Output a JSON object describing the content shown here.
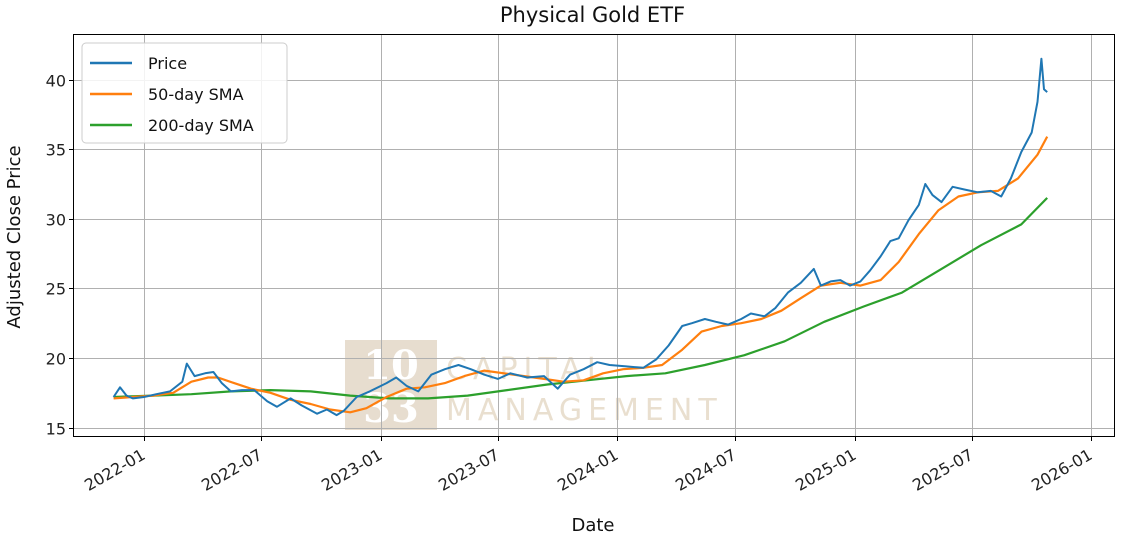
{
  "chart_data": {
    "type": "line",
    "title": "Physical Gold ETF",
    "xlabel": "Date",
    "ylabel": "Adjusted Close Price",
    "xlim": [
      "2021-09-15",
      "2026-02-05"
    ],
    "ylim": [
      14.4,
      43.2
    ],
    "x_ticks": [
      "2022-01",
      "2022-07",
      "2023-01",
      "2023-07",
      "2024-01",
      "2024-07",
      "2025-01",
      "2025-07",
      "2026-01"
    ],
    "y_ticks": [
      15,
      20,
      25,
      30,
      35,
      40
    ],
    "grid": true,
    "legend_position": "top-left",
    "watermark": {
      "top": "10",
      "bottom": "33",
      "text_lines": [
        "CAPITAL",
        "MANAGEMENT"
      ]
    },
    "series": [
      {
        "name": "Price",
        "color": "#1f77b4",
        "points": [
          [
            "2021-11-15",
            17.2
          ],
          [
            "2021-11-25",
            17.9
          ],
          [
            "2021-12-05",
            17.3
          ],
          [
            "2021-12-15",
            17.1
          ],
          [
            "2022-01-01",
            17.2
          ],
          [
            "2022-01-20",
            17.4
          ],
          [
            "2022-02-10",
            17.6
          ],
          [
            "2022-03-01",
            18.3
          ],
          [
            "2022-03-08",
            19.6
          ],
          [
            "2022-03-20",
            18.7
          ],
          [
            "2022-04-05",
            18.9
          ],
          [
            "2022-04-18",
            19.0
          ],
          [
            "2022-05-01",
            18.2
          ],
          [
            "2022-05-15",
            17.6
          ],
          [
            "2022-06-01",
            17.7
          ],
          [
            "2022-06-20",
            17.7
          ],
          [
            "2022-07-10",
            16.9
          ],
          [
            "2022-07-25",
            16.5
          ],
          [
            "2022-08-15",
            17.1
          ],
          [
            "2022-09-01",
            16.6
          ],
          [
            "2022-09-25",
            16.0
          ],
          [
            "2022-10-10",
            16.3
          ],
          [
            "2022-10-25",
            15.9
          ],
          [
            "2022-11-05",
            16.2
          ],
          [
            "2022-11-25",
            17.2
          ],
          [
            "2022-12-15",
            17.6
          ],
          [
            "2023-01-10",
            18.2
          ],
          [
            "2023-01-25",
            18.6
          ],
          [
            "2023-02-10",
            18.0
          ],
          [
            "2023-02-28",
            17.6
          ],
          [
            "2023-03-20",
            18.8
          ],
          [
            "2023-04-10",
            19.2
          ],
          [
            "2023-05-01",
            19.5
          ],
          [
            "2023-05-20",
            19.2
          ],
          [
            "2023-06-10",
            18.8
          ],
          [
            "2023-07-01",
            18.5
          ],
          [
            "2023-07-20",
            18.9
          ],
          [
            "2023-08-15",
            18.6
          ],
          [
            "2023-09-10",
            18.7
          ],
          [
            "2023-10-01",
            17.8
          ],
          [
            "2023-10-20",
            18.8
          ],
          [
            "2023-11-10",
            19.2
          ],
          [
            "2023-12-01",
            19.7
          ],
          [
            "2023-12-20",
            19.5
          ],
          [
            "2024-01-15",
            19.4
          ],
          [
            "2024-02-10",
            19.3
          ],
          [
            "2024-03-01",
            19.9
          ],
          [
            "2024-03-20",
            20.9
          ],
          [
            "2024-04-10",
            22.3
          ],
          [
            "2024-04-25",
            22.5
          ],
          [
            "2024-05-15",
            22.8
          ],
          [
            "2024-06-01",
            22.6
          ],
          [
            "2024-06-20",
            22.4
          ],
          [
            "2024-07-10",
            22.8
          ],
          [
            "2024-07-25",
            23.2
          ],
          [
            "2024-08-15",
            23.0
          ],
          [
            "2024-09-01",
            23.6
          ],
          [
            "2024-09-20",
            24.7
          ],
          [
            "2024-10-10",
            25.4
          ],
          [
            "2024-10-30",
            26.4
          ],
          [
            "2024-11-10",
            25.2
          ],
          [
            "2024-11-25",
            25.5
          ],
          [
            "2024-12-10",
            25.6
          ],
          [
            "2024-12-25",
            25.2
          ],
          [
            "2025-01-10",
            25.5
          ],
          [
            "2025-01-25",
            26.3
          ],
          [
            "2025-02-10",
            27.3
          ],
          [
            "2025-02-25",
            28.4
          ],
          [
            "2025-03-10",
            28.6
          ],
          [
            "2025-03-25",
            29.9
          ],
          [
            "2025-04-10",
            31.0
          ],
          [
            "2025-04-20",
            32.5
          ],
          [
            "2025-05-01",
            31.7
          ],
          [
            "2025-05-15",
            31.2
          ],
          [
            "2025-06-01",
            32.3
          ],
          [
            "2025-06-20",
            32.1
          ],
          [
            "2025-07-10",
            31.9
          ],
          [
            "2025-07-30",
            32.0
          ],
          [
            "2025-08-15",
            31.6
          ],
          [
            "2025-08-30",
            32.9
          ],
          [
            "2025-09-15",
            34.8
          ],
          [
            "2025-10-01",
            36.2
          ],
          [
            "2025-10-10",
            38.4
          ],
          [
            "2025-10-16",
            41.5
          ],
          [
            "2025-10-20",
            39.3
          ],
          [
            "2025-10-25",
            39.1
          ]
        ]
      },
      {
        "name": "50-day SMA",
        "color": "#ff7f0e",
        "points": [
          [
            "2021-11-15",
            17.1
          ],
          [
            "2021-12-15",
            17.2
          ],
          [
            "2022-01-15",
            17.3
          ],
          [
            "2022-02-15",
            17.5
          ],
          [
            "2022-03-15",
            18.3
          ],
          [
            "2022-04-10",
            18.6
          ],
          [
            "2022-04-25",
            18.6
          ],
          [
            "2022-05-20",
            18.2
          ],
          [
            "2022-06-15",
            17.8
          ],
          [
            "2022-07-15",
            17.5
          ],
          [
            "2022-08-15",
            17.0
          ],
          [
            "2022-09-15",
            16.7
          ],
          [
            "2022-10-15",
            16.3
          ],
          [
            "2022-11-15",
            16.1
          ],
          [
            "2022-12-10",
            16.4
          ],
          [
            "2023-01-10",
            17.2
          ],
          [
            "2023-02-10",
            17.8
          ],
          [
            "2023-03-10",
            17.9
          ],
          [
            "2023-04-10",
            18.2
          ],
          [
            "2023-05-10",
            18.7
          ],
          [
            "2023-06-10",
            19.1
          ],
          [
            "2023-07-10",
            18.9
          ],
          [
            "2023-08-10",
            18.7
          ],
          [
            "2023-09-10",
            18.5
          ],
          [
            "2023-10-10",
            18.3
          ],
          [
            "2023-11-10",
            18.4
          ],
          [
            "2023-12-10",
            18.9
          ],
          [
            "2024-01-10",
            19.2
          ],
          [
            "2024-02-10",
            19.3
          ],
          [
            "2024-03-10",
            19.5
          ],
          [
            "2024-04-10",
            20.6
          ],
          [
            "2024-05-10",
            21.9
          ],
          [
            "2024-06-10",
            22.3
          ],
          [
            "2024-07-10",
            22.5
          ],
          [
            "2024-08-10",
            22.8
          ],
          [
            "2024-09-10",
            23.4
          ],
          [
            "2024-10-10",
            24.3
          ],
          [
            "2024-11-10",
            25.2
          ],
          [
            "2024-12-10",
            25.4
          ],
          [
            "2025-01-10",
            25.2
          ],
          [
            "2025-02-10",
            25.6
          ],
          [
            "2025-03-10",
            26.9
          ],
          [
            "2025-04-10",
            28.9
          ],
          [
            "2025-05-10",
            30.6
          ],
          [
            "2025-06-10",
            31.6
          ],
          [
            "2025-07-10",
            31.9
          ],
          [
            "2025-08-10",
            32.0
          ],
          [
            "2025-09-10",
            32.9
          ],
          [
            "2025-10-10",
            34.6
          ],
          [
            "2025-10-25",
            35.9
          ]
        ]
      },
      {
        "name": "200-day SMA",
        "color": "#2ca02c",
        "points": [
          [
            "2021-11-15",
            17.2
          ],
          [
            "2022-01-15",
            17.3
          ],
          [
            "2022-03-15",
            17.4
          ],
          [
            "2022-05-15",
            17.6
          ],
          [
            "2022-07-15",
            17.7
          ],
          [
            "2022-09-15",
            17.6
          ],
          [
            "2022-11-15",
            17.3
          ],
          [
            "2023-01-15",
            17.1
          ],
          [
            "2023-03-15",
            17.1
          ],
          [
            "2023-05-15",
            17.3
          ],
          [
            "2023-07-15",
            17.7
          ],
          [
            "2023-09-15",
            18.1
          ],
          [
            "2023-11-15",
            18.4
          ],
          [
            "2024-01-15",
            18.7
          ],
          [
            "2024-03-15",
            18.9
          ],
          [
            "2024-05-15",
            19.5
          ],
          [
            "2024-07-15",
            20.2
          ],
          [
            "2024-09-15",
            21.2
          ],
          [
            "2024-11-15",
            22.6
          ],
          [
            "2025-01-15",
            23.7
          ],
          [
            "2025-03-15",
            24.7
          ],
          [
            "2025-05-15",
            26.4
          ],
          [
            "2025-07-15",
            28.1
          ],
          [
            "2025-09-15",
            29.6
          ],
          [
            "2025-10-25",
            31.5
          ]
        ]
      }
    ]
  }
}
